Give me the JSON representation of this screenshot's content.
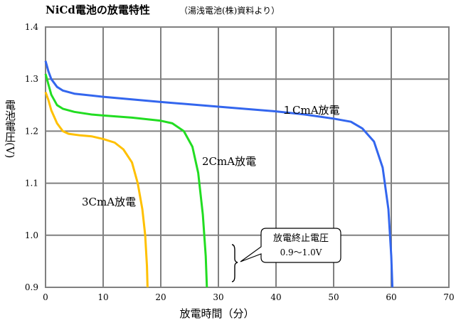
{
  "chart_data": {
    "type": "line",
    "title": "NiCd電池の放電特性",
    "subtitle": "（湯浅電池(株)資料より）",
    "xlabel": "放電時間（分）",
    "ylabel": "電池電圧(V)",
    "xlim": [
      0,
      70
    ],
    "ylim": [
      0.9,
      1.4
    ],
    "x_ticks": [
      "0",
      "10",
      "20",
      "30",
      "40",
      "50",
      "60",
      "70"
    ],
    "y_ticks": [
      "0.9",
      "1.0",
      "1.1",
      "1.2",
      "1.3",
      "1.4"
    ],
    "grid": true,
    "series": [
      {
        "name": "１CmA放電",
        "color": "#3366ee",
        "points": [
          [
            0,
            1.335
          ],
          [
            0.5,
            1.315
          ],
          [
            1,
            1.3
          ],
          [
            2,
            1.285
          ],
          [
            3,
            1.278
          ],
          [
            5,
            1.272
          ],
          [
            10,
            1.266
          ],
          [
            20,
            1.256
          ],
          [
            30,
            1.247
          ],
          [
            40,
            1.238
          ],
          [
            45,
            1.232
          ],
          [
            50,
            1.224
          ],
          [
            53,
            1.218
          ],
          [
            55,
            1.205
          ],
          [
            57,
            1.18
          ],
          [
            58.5,
            1.13
          ],
          [
            59.5,
            1.05
          ],
          [
            60,
            0.96
          ],
          [
            60.2,
            0.9
          ]
        ]
      },
      {
        "name": "2CmA放電",
        "color": "#22dd22",
        "points": [
          [
            0,
            1.31
          ],
          [
            0.5,
            1.29
          ],
          [
            1,
            1.27
          ],
          [
            2,
            1.25
          ],
          [
            3,
            1.243
          ],
          [
            5,
            1.237
          ],
          [
            8,
            1.232
          ],
          [
            10,
            1.23
          ],
          [
            15,
            1.226
          ],
          [
            20,
            1.22
          ],
          [
            22,
            1.215
          ],
          [
            24,
            1.2
          ],
          [
            25.5,
            1.17
          ],
          [
            26.5,
            1.12
          ],
          [
            27.3,
            1.04
          ],
          [
            27.8,
            0.96
          ],
          [
            28,
            0.9
          ]
        ]
      },
      {
        "name": "3CmA放電",
        "color": "#ffc000",
        "points": [
          [
            0,
            1.275
          ],
          [
            0.5,
            1.26
          ],
          [
            1,
            1.24
          ],
          [
            2,
            1.215
          ],
          [
            3,
            1.2
          ],
          [
            4,
            1.195
          ],
          [
            6,
            1.192
          ],
          [
            8,
            1.19
          ],
          [
            10,
            1.185
          ],
          [
            12,
            1.178
          ],
          [
            13.5,
            1.165
          ],
          [
            15,
            1.14
          ],
          [
            16,
            1.1
          ],
          [
            16.8,
            1.05
          ],
          [
            17.3,
            1.0
          ],
          [
            17.6,
            0.94
          ],
          [
            17.7,
            0.9
          ]
        ]
      }
    ],
    "annotations": {
      "label_1c": "１CmA放電",
      "label_2c": "2CmA放電",
      "label_3c": "3CmA放電",
      "cutoff_title": "放電終止電圧",
      "cutoff_range": "0.9～1.0V",
      "cutoff_range_data": [
        0.9,
        1.0
      ]
    }
  }
}
